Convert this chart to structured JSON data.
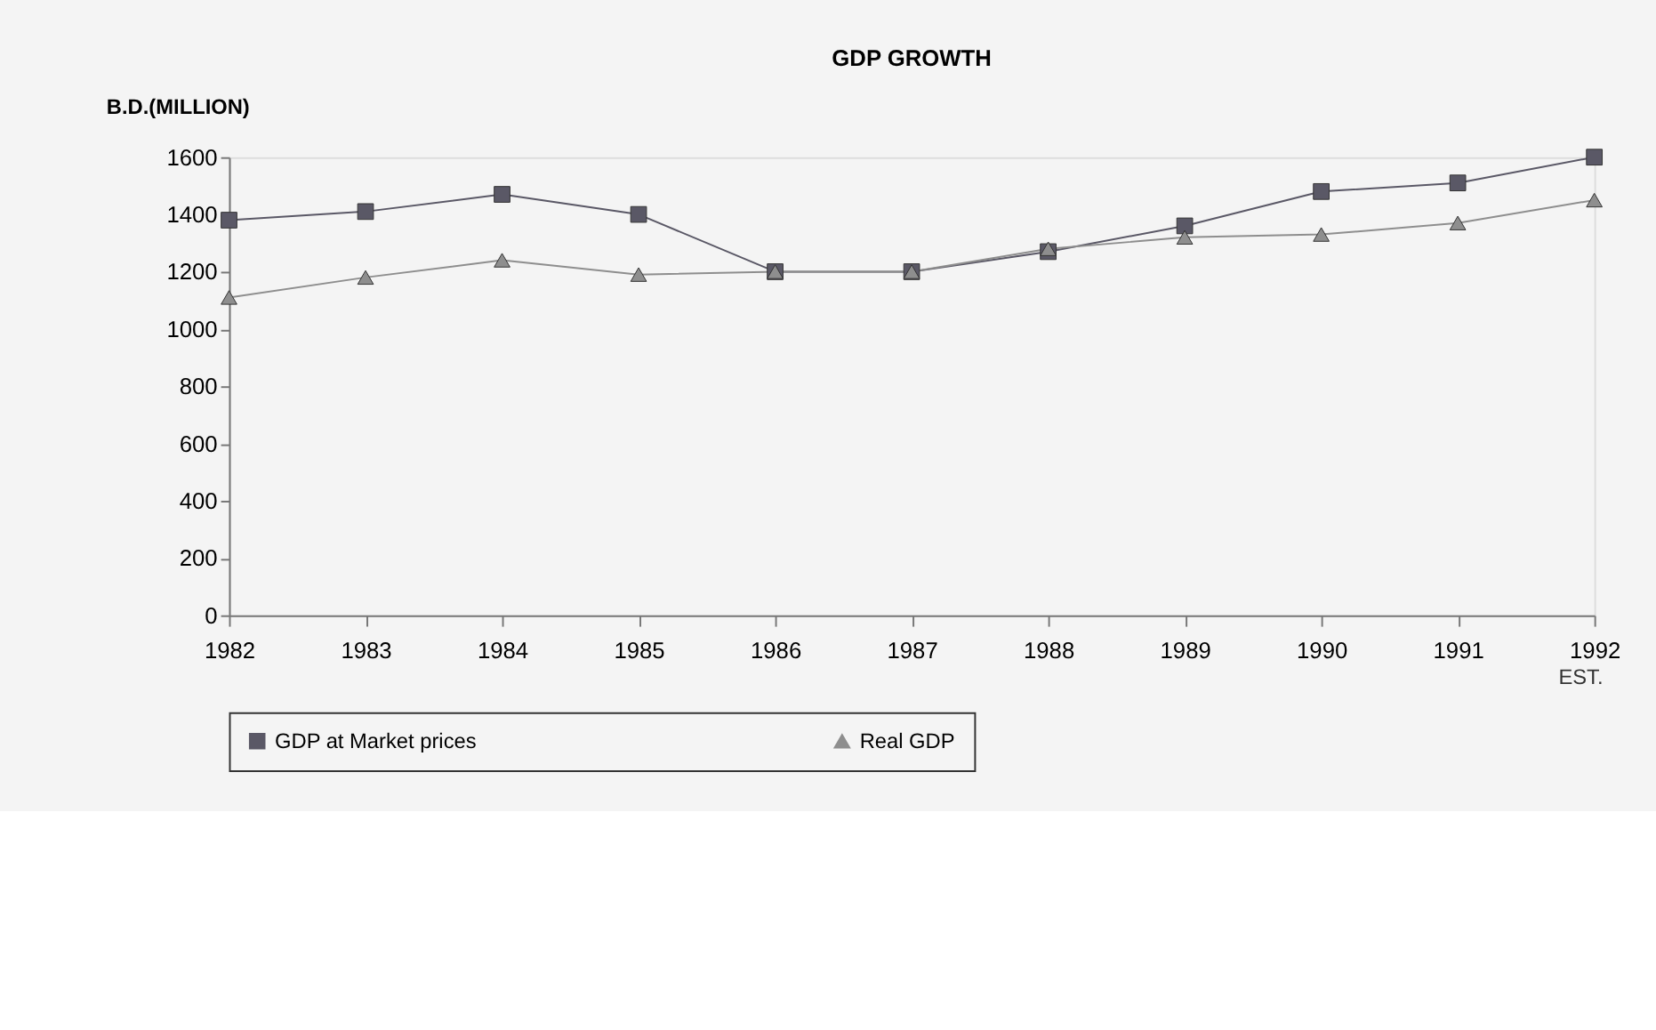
{
  "chart_data": {
    "type": "line",
    "title": "GDP GROWTH",
    "ylabel": "B.D.(MILLION)",
    "categories": [
      "1982",
      "1983",
      "1984",
      "1985",
      "1986",
      "1987",
      "1988",
      "1989",
      "1990",
      "1991",
      "1992"
    ],
    "series": [
      {
        "name": "GDP at Market prices",
        "color": "#5a5866",
        "marker": "square",
        "values": [
          1380,
          1410,
          1470,
          1400,
          1200,
          1200,
          1270,
          1360,
          1480,
          1510,
          1600
        ]
      },
      {
        "name": "Real GDP",
        "color": "#8e8e8e",
        "marker": "triangle",
        "values": [
          1110,
          1180,
          1240,
          1190,
          1200,
          1200,
          1280,
          1320,
          1330,
          1370,
          1450
        ]
      }
    ],
    "ylim": [
      0,
      1600
    ],
    "yticks": [
      0,
      200,
      400,
      600,
      800,
      1000,
      1200,
      1400,
      1600
    ],
    "annotations": [
      "EST."
    ],
    "legend": "bottom"
  }
}
